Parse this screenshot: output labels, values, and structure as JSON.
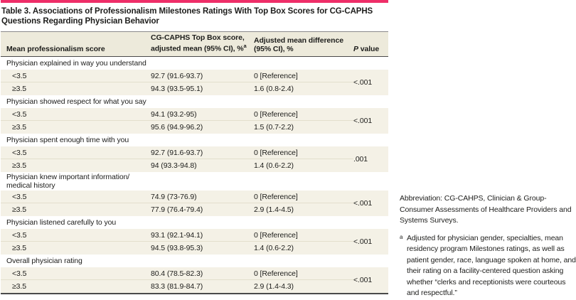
{
  "colors": {
    "accent": "#ee2e68",
    "header_bg": "#edeadb",
    "row_bg": "#f4f1e6",
    "group_row_bg": "#ffffff",
    "rule_light": "#e3dfcd",
    "rule_mid": "#8a8a8a",
    "rule_dark": "#4a4a4a",
    "text": "#1d1d1b"
  },
  "table": {
    "title": "Table 3. Associations of Professionalism Milestones Ratings With Top Box Scores for CG-CAPHS Questions Regarding Physician Behavior",
    "header": {
      "col1": "Mean professionalism score",
      "col2": {
        "line1": "CG-CAPHS Top Box score,",
        "line2": "adjusted mean (95% CI), %",
        "superscript": "a"
      },
      "col3": {
        "line1": "Adjusted mean difference",
        "line2": "(95% CI), %"
      },
      "col4": {
        "italic": "P",
        "rest": " value"
      }
    },
    "groups": [
      {
        "label_lines": [
          "Physician explained in way you understand"
        ],
        "rows": [
          {
            "score": "<3.5",
            "topbox": "92.7 (91.6-93.7)",
            "diff": "0 [Reference]"
          },
          {
            "score": "≥3.5",
            "topbox": "94.3 (93.5-95.1)",
            "diff": "1.6 (0.8-2.4)"
          }
        ],
        "p": "<.001"
      },
      {
        "label_lines": [
          "Physician showed respect for what you say"
        ],
        "rows": [
          {
            "score": "<3.5",
            "topbox": "94.1 (93.2-95)",
            "diff": "0 [Reference]"
          },
          {
            "score": "≥3.5",
            "topbox": "95.6 (94.9-96.2)",
            "diff": "1.5 (0.7-2.2)"
          }
        ],
        "p": "<.001"
      },
      {
        "label_lines": [
          "Physician spent enough time with you"
        ],
        "rows": [
          {
            "score": "<3.5",
            "topbox": "92.7 (91.6-93.7)",
            "diff": "0 [Reference]"
          },
          {
            "score": "≥3.5",
            "topbox": "94 (93.3-94.8)",
            "diff": "1.4 (0.6-2.2)"
          }
        ],
        "p": ".001"
      },
      {
        "label_lines": [
          "Physician knew important information/",
          "medical history"
        ],
        "rows": [
          {
            "score": "<3.5",
            "topbox": "74.9 (73-76.9)",
            "diff": "0 [Reference]"
          },
          {
            "score": "≥3.5",
            "topbox": "77.9 (76.4-79.4)",
            "diff": "2.9 (1.4-4.5)"
          }
        ],
        "p": "<.001"
      },
      {
        "label_lines": [
          "Physician listened carefully to you"
        ],
        "rows": [
          {
            "score": "<3.5",
            "topbox": "93.1 (92.1-94.1)",
            "diff": "0 [Reference]"
          },
          {
            "score": "≥3.5",
            "topbox": "94.5 (93.8-95.3)",
            "diff": "1.4 (0.6-2.2)"
          }
        ],
        "p": "<.001"
      },
      {
        "label_lines": [
          "Overall physician rating"
        ],
        "rows": [
          {
            "score": "<3.5",
            "topbox": "80.4 (78.5-82.3)",
            "diff": "0 [Reference]"
          },
          {
            "score": "≥3.5",
            "topbox": "83.3 (81.9-84.7)",
            "diff": "2.9 (1.4-4.3)"
          }
        ],
        "p": "<.001"
      }
    ]
  },
  "footnotes": {
    "abbreviation": "Abbreviation: CG-CAHPS, Clinician & Group-Consumer Assessments of Healthcare Providers and Systems Surveys.",
    "a_marker": "a",
    "a_text": "Adjusted for physician gender, specialties, mean residency program Milestones ratings, as well as patient gender, race, language spoken at home, and their rating on a facility-centered question asking whether “clerks and receptionists were courteous and respectful.”"
  }
}
